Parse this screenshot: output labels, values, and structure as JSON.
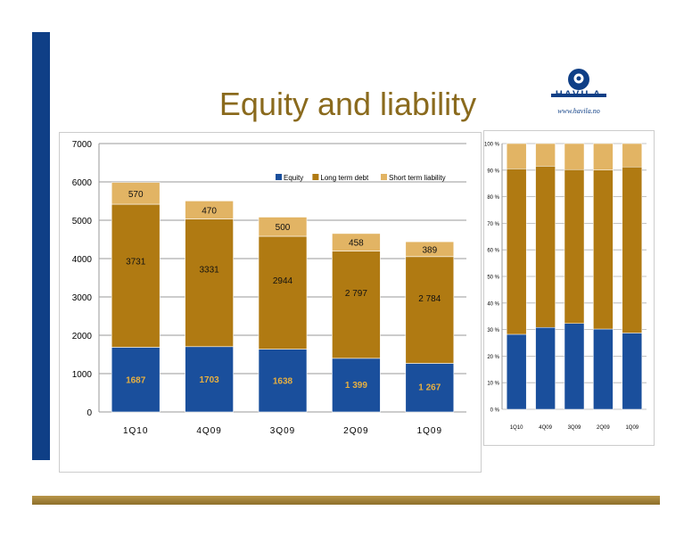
{
  "slide": {
    "title": "Equity and liability"
  },
  "logo": {
    "name": "HAVILA",
    "url": "www.havila.no"
  },
  "chart_data": [
    {
      "type": "bar",
      "stacked": true,
      "categories": [
        "1Q10",
        "4Q09",
        "3Q09",
        "2Q09",
        "1Q09"
      ],
      "series": [
        {
          "name": "Equity",
          "values": [
            1687,
            1703,
            1638,
            1399,
            1267
          ],
          "labels": [
            "1687",
            "1703",
            "1638",
            "1 399",
            "1 267"
          ],
          "color": "#1a4f9c"
        },
        {
          "name": "Long term debt",
          "values": [
            3731,
            3331,
            2944,
            2797,
            2784
          ],
          "labels": [
            "3731",
            "3331",
            "2944",
            "2 797",
            "2 784"
          ],
          "color": "#b07a12"
        },
        {
          "name": "Short term liability",
          "values": [
            570,
            470,
            500,
            458,
            389
          ],
          "labels": [
            "570",
            "470",
            "500",
            "458",
            "389"
          ],
          "color": "#e2b464"
        }
      ],
      "yticks": [
        "0",
        "1000",
        "2000",
        "3000",
        "4000",
        "5000",
        "6000",
        "7000"
      ],
      "ylim": [
        0,
        7000
      ],
      "grid": true,
      "legend": "top-right"
    },
    {
      "type": "bar",
      "stacked": true,
      "percent": true,
      "categories": [
        "1Q10",
        "4Q09",
        "3Q09",
        "2Q09",
        "1Q09"
      ],
      "series": [
        {
          "name": "Equity",
          "values": [
            28.2,
            30.8,
            32.3,
            30.2,
            28.7
          ],
          "color": "#1a4f9c"
        },
        {
          "name": "Long term debt",
          "values": [
            62.3,
            60.7,
            57.9,
            59.9,
            62.5
          ],
          "color": "#b07a12"
        },
        {
          "name": "Short term liability",
          "values": [
            9.5,
            8.5,
            9.8,
            9.9,
            8.8
          ],
          "color": "#e2b464"
        }
      ],
      "yticks": [
        "0 %",
        "10 %",
        "20 %",
        "30 %",
        "40 %",
        "50 %",
        "60 %",
        "70 %",
        "80 %",
        "90 %",
        "100 %"
      ],
      "ylim": [
        0,
        100
      ],
      "grid": true
    }
  ]
}
